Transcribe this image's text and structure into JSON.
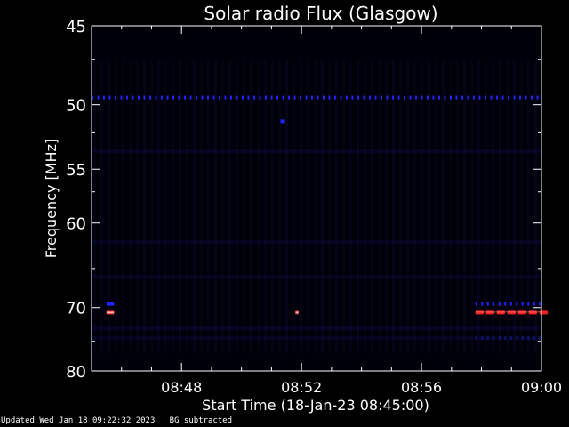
{
  "chart_data": {
    "type": "heatmap",
    "title": "Solar radio Flux (Glasgow)",
    "xlabel": "Start Time (18-Jan-23 08:45:00)",
    "ylabel": "Frequency [MHz]",
    "x_range_minutes": [
      0,
      15
    ],
    "y_range_mhz": [
      45,
      80
    ],
    "x_ticks": [
      {
        "minute": 3,
        "label": "08:48"
      },
      {
        "minute": 7,
        "label": "08:52"
      },
      {
        "minute": 11,
        "label": "08:56"
      },
      {
        "minute": 15,
        "label": "09:00"
      }
    ],
    "y_ticks": [
      {
        "mhz": 45,
        "label": "45"
      },
      {
        "mhz": 50,
        "label": "50"
      },
      {
        "mhz": 55,
        "label": "55"
      },
      {
        "mhz": 60,
        "label": "60"
      },
      {
        "mhz": 70,
        "label": "70"
      },
      {
        "mhz": 80,
        "label": "80"
      }
    ],
    "colors": {
      "background": "#000000",
      "low": "#000010",
      "mid": "#2222ff",
      "high": "#ff2020",
      "axes": "#ffffff"
    },
    "features": [
      {
        "name": "interference-50",
        "freq_mhz": 49.5,
        "t_start": 0,
        "t_end": 15,
        "intensity": "medium",
        "pattern": "dotted"
      },
      {
        "name": "blip-51",
        "freq_mhz": 51.2,
        "t_start": 6.3,
        "t_end": 6.45,
        "intensity": "medium",
        "pattern": "solid"
      },
      {
        "name": "burst-early",
        "freq_mhz": 70.7,
        "t_start": 0.5,
        "t_end": 0.75,
        "intensity": "high",
        "pattern": "solid"
      },
      {
        "name": "burst-mid",
        "freq_mhz": 70.7,
        "t_start": 6.8,
        "t_end": 6.9,
        "intensity": "high",
        "pattern": "solid"
      },
      {
        "name": "burst-late",
        "freq_mhz": 70.7,
        "t_start": 12.8,
        "t_end": 15,
        "intensity": "high",
        "pattern": "dashed"
      },
      {
        "name": "band-69-early",
        "freq_mhz": 69.5,
        "t_start": 0.5,
        "t_end": 0.75,
        "intensity": "medium",
        "pattern": "solid"
      },
      {
        "name": "band-69-late",
        "freq_mhz": 69.5,
        "t_start": 12.8,
        "t_end": 15,
        "intensity": "medium",
        "pattern": "dotted"
      },
      {
        "name": "faint-74",
        "freq_mhz": 74.5,
        "t_start": 12.8,
        "t_end": 15,
        "intensity": "low",
        "pattern": "dotted"
      }
    ]
  },
  "footer": {
    "updated": "Updated Wed Jan 18 09:22:32 2023   BG subtracted"
  }
}
